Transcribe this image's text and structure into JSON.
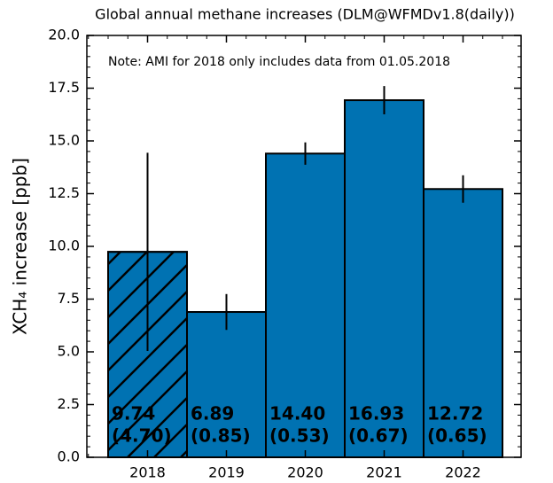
{
  "chart_data": {
    "type": "bar",
    "title": "Global annual methane increases (DLM@WFMDv1.8(daily))",
    "y_label": "XCH₄ increase [ppb]",
    "annotation": "Note: AMI for 2018 only includes data from 01.05.2018",
    "categories": [
      "2018",
      "2019",
      "2020",
      "2021",
      "2022"
    ],
    "values": [
      9.74,
      6.89,
      14.4,
      16.93,
      12.72
    ],
    "value_labels": [
      "9.74",
      "6.89",
      "14.40",
      "16.93",
      "12.72"
    ],
    "errors": [
      4.7,
      0.85,
      0.53,
      0.67,
      0.65
    ],
    "error_labels": [
      "(4.70)",
      "(0.85)",
      "(0.53)",
      "(0.67)",
      "(0.65)"
    ],
    "hatch": [
      true,
      false,
      false,
      false,
      false
    ],
    "color": "#0072b2",
    "ylim": [
      0,
      20
    ],
    "yticks": [
      {
        "value": 0,
        "label": "0.0"
      },
      {
        "value": 2.5,
        "label": "2.5"
      },
      {
        "value": 5,
        "label": "5.0"
      },
      {
        "value": 7.5,
        "label": "7.5"
      },
      {
        "value": 10,
        "label": "10.0"
      },
      {
        "value": 12.5,
        "label": "12.5"
      },
      {
        "value": 15,
        "label": "15.0"
      },
      {
        "value": 17.5,
        "label": "17.5"
      },
      {
        "value": 20,
        "label": "20.0"
      }
    ]
  }
}
